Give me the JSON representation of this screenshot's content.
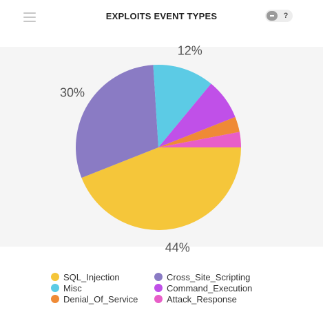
{
  "header": {
    "title": "EXPLOITS EVENT TYPES",
    "menu_icon": "hamburger-menu-icon",
    "help_label": "?"
  },
  "chart_data": {
    "type": "pie",
    "title": "EXPLOITS EVENT TYPES",
    "slices": [
      {
        "name": "SQL_Injection",
        "value": 44,
        "label": "44%",
        "color": "#f5c63a"
      },
      {
        "name": "Cross_Site_Scripting",
        "value": 30,
        "label": "30%",
        "color": "#8a7bc4"
      },
      {
        "name": "Misc",
        "value": 12,
        "label": "12%",
        "color": "#5ccbe5"
      },
      {
        "name": "Command_Execution",
        "value": 8,
        "label": "",
        "color": "#c050e8"
      },
      {
        "name": "Denial_Of_Service",
        "value": 3,
        "label": "",
        "color": "#ef8a36"
      },
      {
        "name": "Attack_Response",
        "value": 3,
        "label": "",
        "color": "#e85ec8"
      }
    ],
    "legend_position": "bottom"
  },
  "legend": [
    {
      "label": "SQL_Injection",
      "color": "#f5c63a"
    },
    {
      "label": "Cross_Site_Scripting",
      "color": "#8a7bc4"
    },
    {
      "label": "Misc",
      "color": "#5ccbe5"
    },
    {
      "label": "Command_Execution",
      "color": "#c050e8"
    },
    {
      "label": "Denial_Of_Service",
      "color": "#ef8a36"
    },
    {
      "label": "Attack_Response",
      "color": "#e85ec8"
    }
  ]
}
